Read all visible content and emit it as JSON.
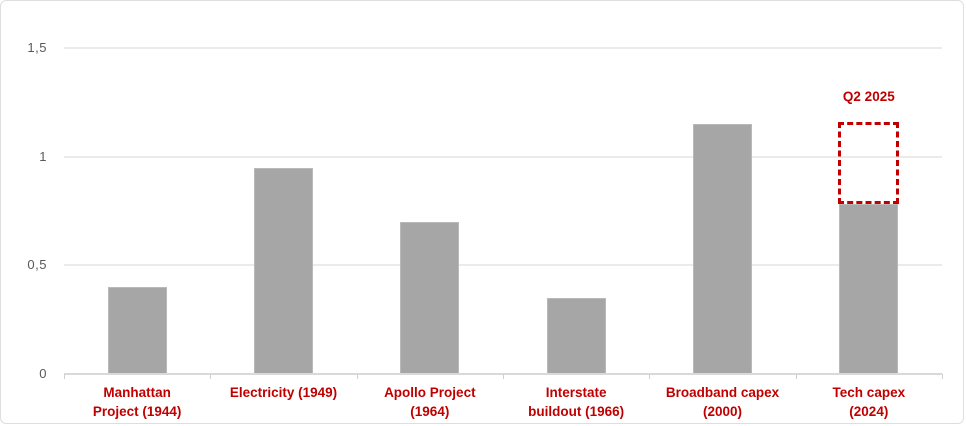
{
  "chart_data": {
    "type": "bar",
    "title": "",
    "xlabel": "",
    "ylabel": "",
    "categories": [
      "Manhattan\nProject (1944)",
      "Electricity (1949)",
      "Apollo Project\n(1964)",
      "Interstate\nbuildout (1966)",
      "Broadband capex\n(2000)",
      "Tech capex\n(2024)"
    ],
    "values": [
      0.4,
      0.95,
      0.7,
      0.35,
      1.15,
      0.78
    ],
    "ylim": [
      0,
      1.5
    ],
    "yticks": [
      {
        "value": 0,
        "label": "0"
      },
      {
        "value": 0.5,
        "label": "0,5"
      },
      {
        "value": 1,
        "label": "1"
      },
      {
        "value": 1.5,
        "label": "1,5"
      }
    ],
    "grid": true,
    "legend": "none",
    "annotation": {
      "label": "Q2 2025",
      "category_index": 5,
      "from": 0.78,
      "to": 1.16,
      "style": "dashed-red-box"
    },
    "colors": {
      "bar": "#a6a6a6",
      "accent_red": "#c00000",
      "gridline": "#ebebeb",
      "axis": "#d9d9d9",
      "tick_label": "#595959"
    }
  }
}
